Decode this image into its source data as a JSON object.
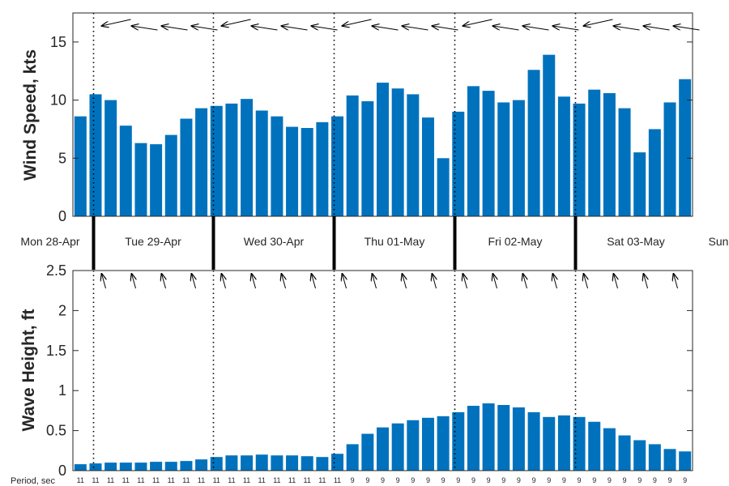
{
  "chart_data": [
    {
      "type": "bar",
      "ylabel": "Wind Speed, kts",
      "ylim": [
        0,
        17.5
      ],
      "yticks": [
        "0",
        "5",
        "10",
        "15"
      ],
      "bar_color": "#0072BD",
      "values": [
        8.6,
        10.5,
        10.0,
        7.8,
        6.3,
        6.2,
        7.0,
        8.4,
        9.3,
        9.5,
        9.7,
        10.1,
        9.1,
        8.6,
        7.7,
        7.6,
        8.1,
        8.6,
        10.4,
        9.9,
        11.5,
        11.0,
        10.5,
        8.5,
        5.0,
        9.0,
        11.2,
        10.8,
        9.8,
        10.0,
        12.6,
        13.9,
        10.3,
        9.7,
        10.9,
        10.6,
        9.3,
        5.5,
        7.5,
        9.8,
        11.8
      ],
      "direction_arrows": "pointing from east-northeast (upper right to left)"
    },
    {
      "type": "bar",
      "ylabel": "Wave Height, ft",
      "ylim": [
        0,
        2.5
      ],
      "yticks": [
        "0",
        "0.5",
        "1",
        "1.5",
        "2",
        "2.5"
      ],
      "bar_color": "#0072BD",
      "values": [
        0.08,
        0.09,
        0.1,
        0.1,
        0.1,
        0.11,
        0.11,
        0.12,
        0.14,
        0.17,
        0.19,
        0.19,
        0.2,
        0.19,
        0.19,
        0.18,
        0.17,
        0.21,
        0.33,
        0.46,
        0.54,
        0.59,
        0.63,
        0.66,
        0.68,
        0.73,
        0.81,
        0.84,
        0.82,
        0.79,
        0.73,
        0.67,
        0.69,
        0.67,
        0.61,
        0.53,
        0.44,
        0.38,
        0.33,
        0.27,
        0.24
      ],
      "direction_arrows": "pointing up and slightly left"
    }
  ],
  "days": [
    "Mon 28-Apr",
    "Tue 29-Apr",
    "Wed 30-Apr",
    "Thu 01-May",
    "Fri 02-May",
    "Sat 03-May",
    "Sun"
  ],
  "period_label": "Period, sec",
  "periods": [
    "11",
    "11",
    "11",
    "11",
    "11",
    "11",
    "11",
    "11",
    "11",
    "11",
    "11",
    "11",
    "11",
    "11",
    "11",
    "11",
    "11",
    "11",
    "9",
    "9",
    "9",
    "9",
    "9",
    "9",
    "9",
    "9",
    "9",
    "9",
    "9",
    "9",
    "9",
    "9",
    "9",
    "9",
    "9",
    "9",
    "9",
    "9",
    "9",
    "9",
    "9"
  ]
}
